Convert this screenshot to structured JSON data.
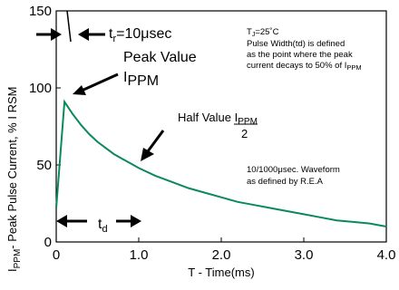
{
  "chart_data": {
    "type": "line",
    "xlabel": "T - Time(ms)",
    "ylabel_parts": {
      "main": "I",
      "sub": "PPM",
      "rest": "- Peak Pulse Current, % I RSM"
    },
    "xlim": [
      0,
      4.0
    ],
    "ylim": [
      0,
      150
    ],
    "xticks": [
      0,
      1.0,
      2.0,
      3.0,
      4.0
    ],
    "xtick_labels": [
      "0",
      "1.0",
      "2.0",
      "3.0",
      "4.0"
    ],
    "yticks": [
      0,
      50,
      100,
      150
    ],
    "ytick_labels": [
      "0",
      "50",
      "100",
      "150"
    ],
    "grid": false,
    "series": [
      {
        "color": "#0a8a5a",
        "x": [
          0,
          0.1,
          0.2,
          0.3,
          0.4,
          0.5,
          0.6,
          0.7,
          0.8,
          0.9,
          1.0,
          1.2,
          1.4,
          1.6,
          1.8,
          2.0,
          2.2,
          2.4,
          2.6,
          2.8,
          3.0,
          3.2,
          3.4,
          3.6,
          3.8,
          4.0
        ],
        "y": [
          22,
          91,
          83,
          76,
          70,
          65,
          61,
          57,
          54,
          51,
          48,
          43,
          39,
          35,
          32,
          29,
          26,
          24,
          22,
          20,
          18,
          16,
          14,
          13,
          12,
          10
        ]
      }
    ],
    "annotations": {
      "tr": {
        "main": "t",
        "sub": "r",
        "rest": "=10μsec"
      },
      "peak_line1": "Peak Value",
      "peak_line2": {
        "main": "I",
        "sub": "PPM"
      },
      "half_line1": {
        "text": "Half Value I",
        "sub": "PPM"
      },
      "half_denominator": "2",
      "td": {
        "main": "t",
        "sub": "d"
      },
      "note_tj": "T =25˚C",
      "note_tj_sub": "J",
      "note_line1": "Pulse Width(td) is defined",
      "note_line2": "as the point where the peak",
      "note_line3_text": "current decays to 50% of I",
      "note_line3_sub": "PPM",
      "waveform_line1": "10/1000μsec. Waveform",
      "waveform_line2": "as defined by R.E.A"
    }
  }
}
